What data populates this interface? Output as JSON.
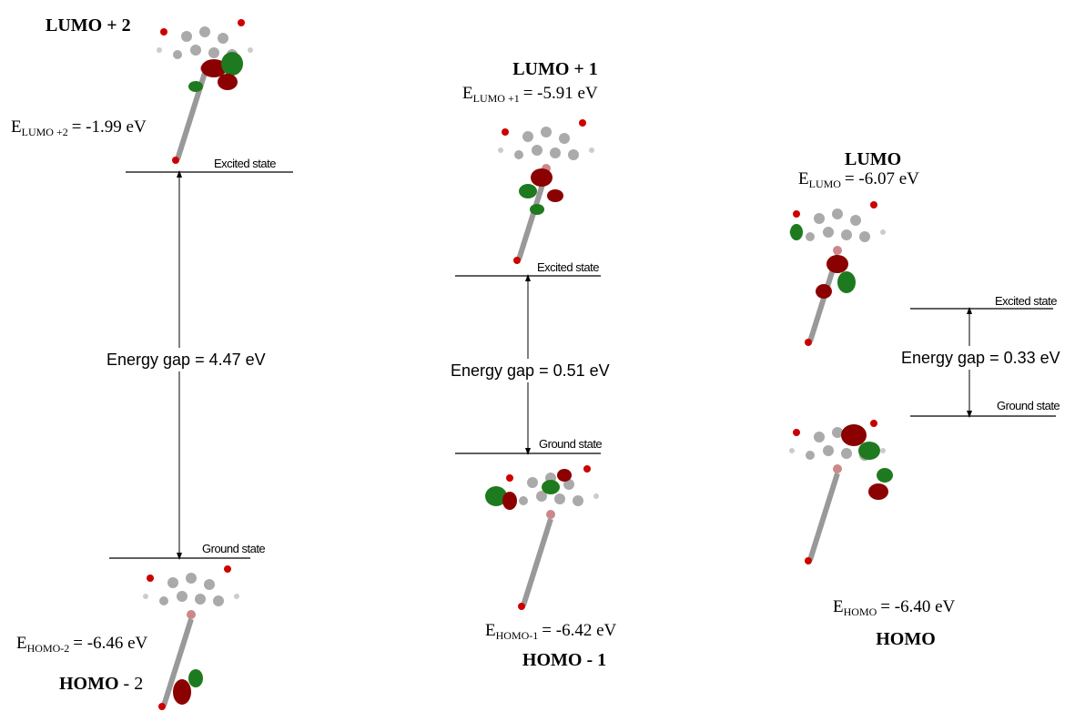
{
  "panels": [
    {
      "title": "LUMO + 2",
      "upper_energy": {
        "symbol": "E",
        "subscript": "LUMO +2",
        "value": "= -1.99 eV"
      },
      "excited_label": "Excited state",
      "gap_label": "Energy gap = 4.47 eV",
      "ground_label": "Ground state",
      "lower_energy": {
        "symbol": "E",
        "subscript": "HOMO-2",
        "value": "= -6.46 eV"
      },
      "lower_title": "HOMO",
      "lower_title_suffix": "- 2"
    },
    {
      "title": "LUMO + 1",
      "upper_energy": {
        "symbol": "E",
        "subscript": "LUMO +1",
        "value": "= -5.91 eV"
      },
      "excited_label": "Excited state",
      "gap_label": "Energy gap = 0.51 eV",
      "ground_label": "Ground state",
      "lower_energy": {
        "symbol": "E",
        "subscript": "HOMO-1",
        "value": "= -6.42 eV"
      },
      "lower_title": "HOMO - 1"
    },
    {
      "title": "LUMO",
      "upper_energy": {
        "symbol": "E",
        "subscript": "LUMO",
        "value": "= -6.07 eV"
      },
      "excited_label": "Excited state",
      "gap_label": "Energy gap = 0.33 eV",
      "ground_label": "Ground state",
      "lower_energy": {
        "symbol": "E",
        "subscript": "HOMO",
        "value": "= -6.40 eV"
      },
      "lower_title": "HOMO"
    }
  ]
}
